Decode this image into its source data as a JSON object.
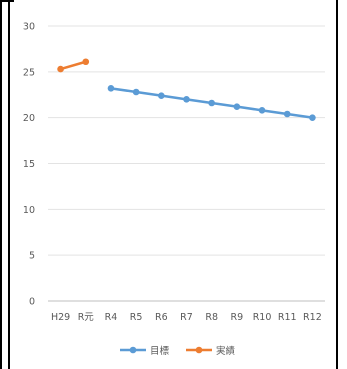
{
  "chart_data": {
    "type": "line",
    "title": "",
    "xlabel": "",
    "ylabel": "",
    "categories": [
      "H29",
      "R元",
      "R4",
      "R5",
      "R6",
      "R7",
      "R8",
      "R9",
      "R10",
      "R11",
      "R12"
    ],
    "ylim": [
      0,
      30
    ],
    "yticks": [
      0,
      5,
      10,
      15,
      20,
      25,
      30
    ],
    "grid": true,
    "legend_position": "bottom",
    "series": [
      {
        "name": "目標",
        "color": "#5b9bd5",
        "values": [
          null,
          null,
          23.2,
          22.8,
          22.4,
          22.0,
          21.6,
          21.2,
          20.8,
          20.4,
          20.0
        ]
      },
      {
        "name": "実績",
        "color": "#ed7d31",
        "values": [
          25.3,
          26.1,
          null,
          null,
          null,
          null,
          null,
          null,
          null,
          null,
          null
        ]
      }
    ]
  }
}
